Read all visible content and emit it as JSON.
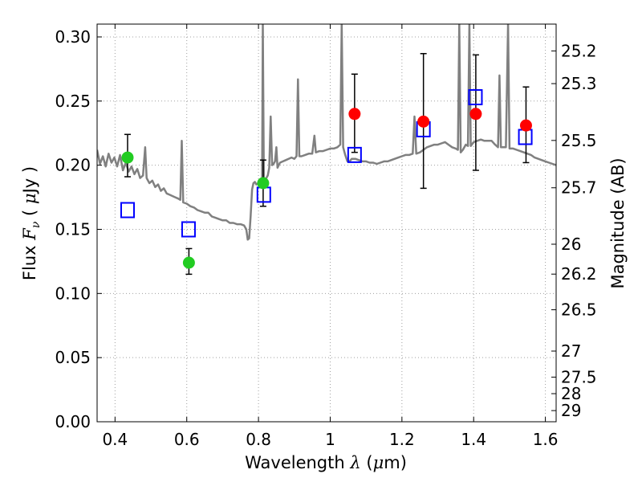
{
  "chart_data": {
    "type": "scatter",
    "title": "",
    "xlabel": "Wavelength",
    "xlabel_symbol": "λ",
    "xlabel_unit_prefix": "(",
    "xlabel_unit_mu": "μ",
    "xlabel_unit_rest": "m)",
    "ylabel": "Flux",
    "ylabel_symbol": "F",
    "ylabel_subscript": "ν",
    "ylabel_unit_prefix": "(",
    "ylabel_unit_mu": "μ",
    "ylabel_unit_rest": "Jy )",
    "y2label": "Magnitude (AB)",
    "xlim": [
      0.35,
      1.63
    ],
    "ylim": [
      0.0,
      0.31
    ],
    "grid": true,
    "x_ticks": [
      0.4,
      0.6,
      0.8,
      1.0,
      1.2,
      1.4,
      1.6
    ],
    "x_tick_labels": [
      "0.4",
      "0.6",
      "0.8",
      "1",
      "1.2",
      "1.4",
      "1.6"
    ],
    "y_ticks": [
      0.0,
      0.05,
      0.1,
      0.15,
      0.2,
      0.25,
      0.3
    ],
    "y_tick_labels": [
      "0.00",
      "0.05",
      "0.10",
      "0.15",
      "0.20",
      "0.25",
      "0.30"
    ],
    "y2_ticks": [
      {
        "label": "25.2",
        "flux": 0.2891
      },
      {
        "label": "25.3",
        "flux": 0.2636
      },
      {
        "label": "25.5",
        "flux": 0.2193
      },
      {
        "label": "25.7",
        "flux": 0.1824
      },
      {
        "label": "26",
        "flux": 0.1384
      },
      {
        "label": "26.2",
        "flux": 0.1151
      },
      {
        "label": "26.5",
        "flux": 0.0873
      },
      {
        "label": "27",
        "flux": 0.0551
      },
      {
        "label": "27.5",
        "flux": 0.0348
      },
      {
        "label": "28",
        "flux": 0.0219
      },
      {
        "label": "29",
        "flux": 0.0087
      }
    ],
    "colors": {
      "model_line": "#808080",
      "blue_squares": "#0000ff",
      "green_points": "#22cc22",
      "red_points": "#ff0000",
      "error_bars": "#000000",
      "grid": "#a0a0a0"
    },
    "series": [
      {
        "kind": "model_spectrum",
        "points": [
          [
            0.35,
            0.212
          ],
          [
            0.358,
            0.201
          ],
          [
            0.366,
            0.207
          ],
          [
            0.374,
            0.199
          ],
          [
            0.382,
            0.209
          ],
          [
            0.39,
            0.202
          ],
          [
            0.398,
            0.206
          ],
          [
            0.406,
            0.199
          ],
          [
            0.414,
            0.208
          ],
          [
            0.422,
            0.196
          ],
          [
            0.43,
            0.202
          ],
          [
            0.438,
            0.195
          ],
          [
            0.446,
            0.199
          ],
          [
            0.454,
            0.193
          ],
          [
            0.462,
            0.197
          ],
          [
            0.47,
            0.19
          ],
          [
            0.478,
            0.192
          ],
          [
            0.484,
            0.214
          ],
          [
            0.488,
            0.19
          ],
          [
            0.496,
            0.186
          ],
          [
            0.504,
            0.188
          ],
          [
            0.512,
            0.183
          ],
          [
            0.52,
            0.185
          ],
          [
            0.528,
            0.18
          ],
          [
            0.536,
            0.182
          ],
          [
            0.544,
            0.178
          ],
          [
            0.552,
            0.177
          ],
          [
            0.56,
            0.176
          ],
          [
            0.568,
            0.175
          ],
          [
            0.576,
            0.174
          ],
          [
            0.582,
            0.173
          ],
          [
            0.586,
            0.219
          ],
          [
            0.59,
            0.171
          ],
          [
            0.6,
            0.17
          ],
          [
            0.61,
            0.168
          ],
          [
            0.62,
            0.167
          ],
          [
            0.63,
            0.165
          ],
          [
            0.64,
            0.164
          ],
          [
            0.65,
            0.163
          ],
          [
            0.66,
            0.163
          ],
          [
            0.67,
            0.16
          ],
          [
            0.68,
            0.159
          ],
          [
            0.69,
            0.158
          ],
          [
            0.7,
            0.157
          ],
          [
            0.71,
            0.157
          ],
          [
            0.72,
            0.155
          ],
          [
            0.73,
            0.155
          ],
          [
            0.74,
            0.154
          ],
          [
            0.75,
            0.154
          ],
          [
            0.76,
            0.153
          ],
          [
            0.766,
            0.15
          ],
          [
            0.77,
            0.142
          ],
          [
            0.774,
            0.143
          ],
          [
            0.778,
            0.16
          ],
          [
            0.782,
            0.181
          ],
          [
            0.786,
            0.186
          ],
          [
            0.79,
            0.187
          ],
          [
            0.794,
            0.185
          ],
          [
            0.8,
            0.186
          ],
          [
            0.806,
            0.188
          ],
          [
            0.81,
            0.189
          ],
          [
            0.812,
            0.31
          ],
          [
            0.815,
            0.188
          ],
          [
            0.82,
            0.189
          ],
          [
            0.826,
            0.192
          ],
          [
            0.83,
            0.198
          ],
          [
            0.834,
            0.238
          ],
          [
            0.838,
            0.2
          ],
          [
            0.842,
            0.201
          ],
          [
            0.846,
            0.203
          ],
          [
            0.85,
            0.214
          ],
          [
            0.853,
            0.198
          ],
          [
            0.86,
            0.202
          ],
          [
            0.868,
            0.203
          ],
          [
            0.876,
            0.204
          ],
          [
            0.884,
            0.205
          ],
          [
            0.892,
            0.206
          ],
          [
            0.9,
            0.205
          ],
          [
            0.906,
            0.207
          ],
          [
            0.91,
            0.267
          ],
          [
            0.914,
            0.207
          ],
          [
            0.92,
            0.207
          ],
          [
            0.93,
            0.208
          ],
          [
            0.94,
            0.209
          ],
          [
            0.95,
            0.209
          ],
          [
            0.956,
            0.223
          ],
          [
            0.96,
            0.21
          ],
          [
            0.97,
            0.211
          ],
          [
            0.98,
            0.211
          ],
          [
            0.99,
            0.212
          ],
          [
            1.0,
            0.213
          ],
          [
            1.01,
            0.213
          ],
          [
            1.02,
            0.214
          ],
          [
            1.028,
            0.216
          ],
          [
            1.032,
            0.31
          ],
          [
            1.036,
            0.214
          ],
          [
            1.042,
            0.208
          ],
          [
            1.048,
            0.203
          ],
          [
            1.054,
            0.203
          ],
          [
            1.06,
            0.205
          ],
          [
            1.07,
            0.205
          ],
          [
            1.08,
            0.204
          ],
          [
            1.09,
            0.203
          ],
          [
            1.1,
            0.203
          ],
          [
            1.11,
            0.202
          ],
          [
            1.12,
            0.202
          ],
          [
            1.13,
            0.201
          ],
          [
            1.14,
            0.202
          ],
          [
            1.15,
            0.203
          ],
          [
            1.16,
            0.203
          ],
          [
            1.17,
            0.204
          ],
          [
            1.18,
            0.205
          ],
          [
            1.19,
            0.206
          ],
          [
            1.2,
            0.207
          ],
          [
            1.21,
            0.208
          ],
          [
            1.22,
            0.208
          ],
          [
            1.23,
            0.209
          ],
          [
            1.235,
            0.238
          ],
          [
            1.24,
            0.209
          ],
          [
            1.25,
            0.21
          ],
          [
            1.26,
            0.212
          ],
          [
            1.27,
            0.214
          ],
          [
            1.28,
            0.215
          ],
          [
            1.29,
            0.216
          ],
          [
            1.3,
            0.216
          ],
          [
            1.31,
            0.217
          ],
          [
            1.32,
            0.218
          ],
          [
            1.33,
            0.216
          ],
          [
            1.34,
            0.214
          ],
          [
            1.35,
            0.213
          ],
          [
            1.356,
            0.212
          ],
          [
            1.36,
            0.31
          ],
          [
            1.364,
            0.21
          ],
          [
            1.37,
            0.212
          ],
          [
            1.378,
            0.216
          ],
          [
            1.384,
            0.215
          ],
          [
            1.388,
            0.31
          ],
          [
            1.392,
            0.215
          ],
          [
            1.4,
            0.218
          ],
          [
            1.41,
            0.219
          ],
          [
            1.42,
            0.22
          ],
          [
            1.43,
            0.219
          ],
          [
            1.44,
            0.219
          ],
          [
            1.45,
            0.219
          ],
          [
            1.46,
            0.216
          ],
          [
            1.468,
            0.214
          ],
          [
            1.472,
            0.27
          ],
          [
            1.476,
            0.214
          ],
          [
            1.484,
            0.214
          ],
          [
            1.49,
            0.214
          ],
          [
            1.496,
            0.31
          ],
          [
            1.5,
            0.213
          ],
          [
            1.51,
            0.213
          ],
          [
            1.52,
            0.212
          ],
          [
            1.53,
            0.211
          ],
          [
            1.54,
            0.21
          ],
          [
            1.55,
            0.209
          ],
          [
            1.56,
            0.208
          ],
          [
            1.57,
            0.206
          ],
          [
            1.58,
            0.205
          ],
          [
            1.59,
            0.204
          ],
          [
            1.6,
            0.203
          ],
          [
            1.61,
            0.202
          ],
          [
            1.62,
            0.201
          ],
          [
            1.63,
            0.2
          ]
        ]
      },
      {
        "kind": "model_photometry",
        "marker": "open-square",
        "points": [
          {
            "x": 0.435,
            "y": 0.165
          },
          {
            "x": 0.605,
            "y": 0.15
          },
          {
            "x": 0.815,
            "y": 0.177
          },
          {
            "x": 1.068,
            "y": 0.208
          },
          {
            "x": 1.26,
            "y": 0.228
          },
          {
            "x": 1.405,
            "y": 0.253
          },
          {
            "x": 1.544,
            "y": 0.222
          }
        ]
      },
      {
        "kind": "observed",
        "marker": "filled-circle",
        "points": [
          {
            "x": 0.435,
            "y": 0.206,
            "yerr": [
              0.191,
              0.224
            ],
            "color": "green"
          },
          {
            "x": 0.606,
            "y": 0.124,
            "yerr": [
              0.115,
              0.135
            ],
            "color": "green"
          },
          {
            "x": 0.813,
            "y": 0.186,
            "yerr": [
              0.168,
              0.204
            ],
            "color": "green"
          },
          {
            "x": 1.068,
            "y": 0.24,
            "yerr": [
              0.21,
              0.271
            ],
            "color": "red"
          },
          {
            "x": 1.26,
            "y": 0.234,
            "yerr": [
              0.182,
              0.287
            ],
            "color": "red"
          },
          {
            "x": 1.406,
            "y": 0.24,
            "yerr": [
              0.196,
              0.286
            ],
            "color": "red"
          },
          {
            "x": 1.546,
            "y": 0.231,
            "yerr": [
              0.202,
              0.261
            ],
            "color": "red"
          }
        ]
      }
    ]
  }
}
